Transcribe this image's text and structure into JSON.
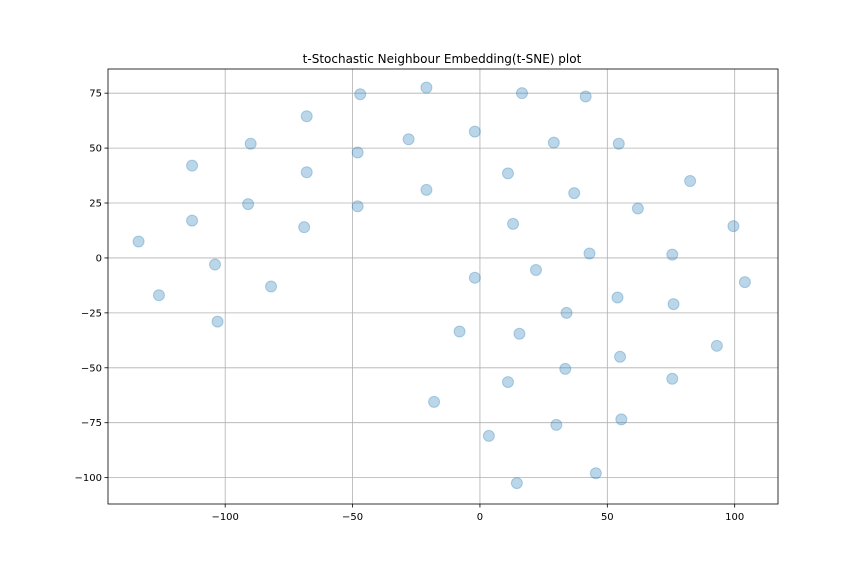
{
  "chart_data": {
    "type": "scatter",
    "title": "t-Stochastic Neighbour Embedding(t-SNE) plot",
    "xlabel": "",
    "ylabel": "",
    "xlim": [
      -146,
      117
    ],
    "ylim": [
      -112,
      86
    ],
    "xticks": [
      -100,
      -50,
      0,
      50,
      100
    ],
    "yticks": [
      75,
      50,
      25,
      0,
      -25,
      -50,
      -75,
      -100
    ],
    "xtick_labels": [
      "−100",
      "−50",
      "0",
      "50",
      "100"
    ],
    "ytick_labels": [
      "75",
      "50",
      "25",
      "0",
      "−25",
      "−50",
      "−75",
      "−100"
    ],
    "grid": true,
    "marker_color": "#1f77b4",
    "marker_alpha": 0.3,
    "points": [
      {
        "x": -134,
        "y": 7.5
      },
      {
        "x": -126,
        "y": -17
      },
      {
        "x": -113,
        "y": 42
      },
      {
        "x": -113,
        "y": 17
      },
      {
        "x": -104,
        "y": -3
      },
      {
        "x": -103,
        "y": -29
      },
      {
        "x": -90,
        "y": 52
      },
      {
        "x": -91,
        "y": 24.5
      },
      {
        "x": -82,
        "y": -13
      },
      {
        "x": -68,
        "y": 64.5
      },
      {
        "x": -68,
        "y": 39
      },
      {
        "x": -69,
        "y": 14
      },
      {
        "x": -47,
        "y": 74.5
      },
      {
        "x": -48,
        "y": 48
      },
      {
        "x": -48,
        "y": 23.5
      },
      {
        "x": -28,
        "y": 54
      },
      {
        "x": -21,
        "y": 77.5
      },
      {
        "x": -21,
        "y": 31
      },
      {
        "x": -18,
        "y": -65.5
      },
      {
        "x": -8,
        "y": -33.5
      },
      {
        "x": -2,
        "y": 57.5
      },
      {
        "x": -2,
        "y": -9
      },
      {
        "x": 3.5,
        "y": -81
      },
      {
        "x": 11,
        "y": 38.5
      },
      {
        "x": 11,
        "y": -56.5
      },
      {
        "x": 13,
        "y": 15.5
      },
      {
        "x": 14.5,
        "y": -102.5
      },
      {
        "x": 15.5,
        "y": -34.5
      },
      {
        "x": 16.5,
        "y": 75
      },
      {
        "x": 22,
        "y": -5.5
      },
      {
        "x": 29,
        "y": 52.5
      },
      {
        "x": 30,
        "y": -76
      },
      {
        "x": 34,
        "y": -25
      },
      {
        "x": 33.5,
        "y": -50.5
      },
      {
        "x": 37,
        "y": 29.5
      },
      {
        "x": 41.5,
        "y": 73.5
      },
      {
        "x": 43,
        "y": 2
      },
      {
        "x": 45.5,
        "y": -98
      },
      {
        "x": 54,
        "y": -18
      },
      {
        "x": 54.5,
        "y": 52
      },
      {
        "x": 55,
        "y": -45
      },
      {
        "x": 55.5,
        "y": -73.5
      },
      {
        "x": 62,
        "y": 22.5
      },
      {
        "x": 75.5,
        "y": -55
      },
      {
        "x": 75.5,
        "y": 1.5
      },
      {
        "x": 76,
        "y": -21
      },
      {
        "x": 82.5,
        "y": 35
      },
      {
        "x": 93,
        "y": -40
      },
      {
        "x": 99.5,
        "y": 14.5
      },
      {
        "x": 104,
        "y": -11
      }
    ]
  }
}
